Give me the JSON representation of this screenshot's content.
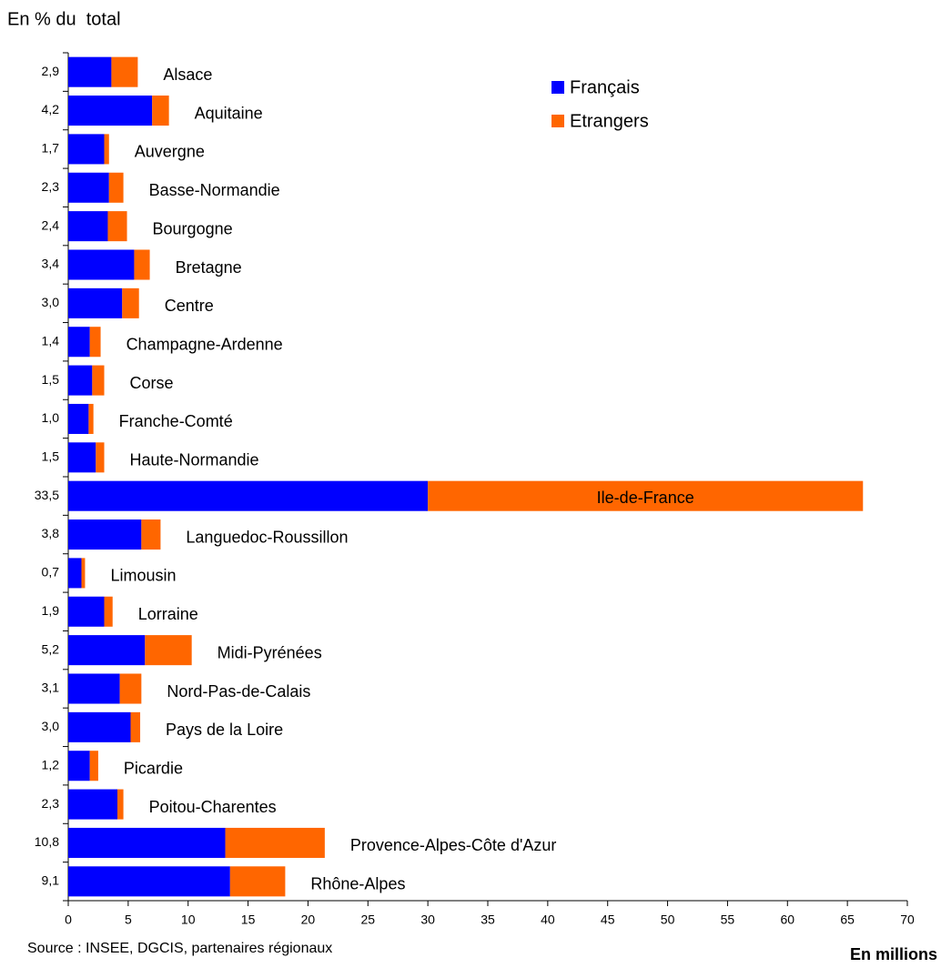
{
  "chart_data": {
    "type": "stacked_bar_horizontal",
    "title": "En % du  total",
    "source": "Source : INSEE, DGCIS, partenaires régionaux",
    "x_label": "En millions",
    "categories": [
      "Alsace",
      "Aquitaine",
      "Auvergne",
      "Basse-Normandie",
      "Bourgogne",
      "Bretagne",
      "Centre",
      "Champagne-Ardenne",
      "Corse",
      "Franche-Comté",
      "Haute-Normandie",
      "Ile-de-France",
      "Languedoc-Roussillon",
      "Limousin",
      "Lorraine",
      "Midi-Pyrénées",
      "Nord-Pas-de-Calais",
      "Pays de la Loire",
      "Picardie",
      "Poitou-Charentes",
      "Provence-Alpes-Côte d'Azur",
      "Rhône-Alpes"
    ],
    "shares": [
      "2,9",
      "4,2",
      "1,7",
      "2,3",
      "2,4",
      "3,4",
      "3,0",
      "1,4",
      "1,5",
      "1,0",
      "1,5",
      "33,5",
      "3,8",
      "0,7",
      "1,9",
      "5,2",
      "3,1",
      "3,0",
      "1,2",
      "2,3",
      "10,8",
      "9,1"
    ],
    "series": [
      {
        "name": "Français",
        "color": "#0000ff",
        "values": [
          3.6,
          7.0,
          3.0,
          3.4,
          3.3,
          5.5,
          4.5,
          1.8,
          2.0,
          1.7,
          2.3,
          30.0,
          6.1,
          1.1,
          3.0,
          6.4,
          4.3,
          5.2,
          1.8,
          4.1,
          13.1,
          13.5
        ]
      },
      {
        "name": "Etrangers",
        "color": "#ff6600",
        "values": [
          2.2,
          1.4,
          0.4,
          1.2,
          1.6,
          1.3,
          1.4,
          0.9,
          1.0,
          0.4,
          0.7,
          36.3,
          1.6,
          0.3,
          0.7,
          3.9,
          1.8,
          0.8,
          0.7,
          0.5,
          8.3,
          4.6
        ]
      }
    ],
    "xlim": [
      0,
      70
    ],
    "xticks": [
      0,
      5,
      10,
      15,
      20,
      25,
      30,
      35,
      40,
      45,
      50,
      55,
      60,
      65,
      70
    ],
    "legend": "top-right"
  }
}
